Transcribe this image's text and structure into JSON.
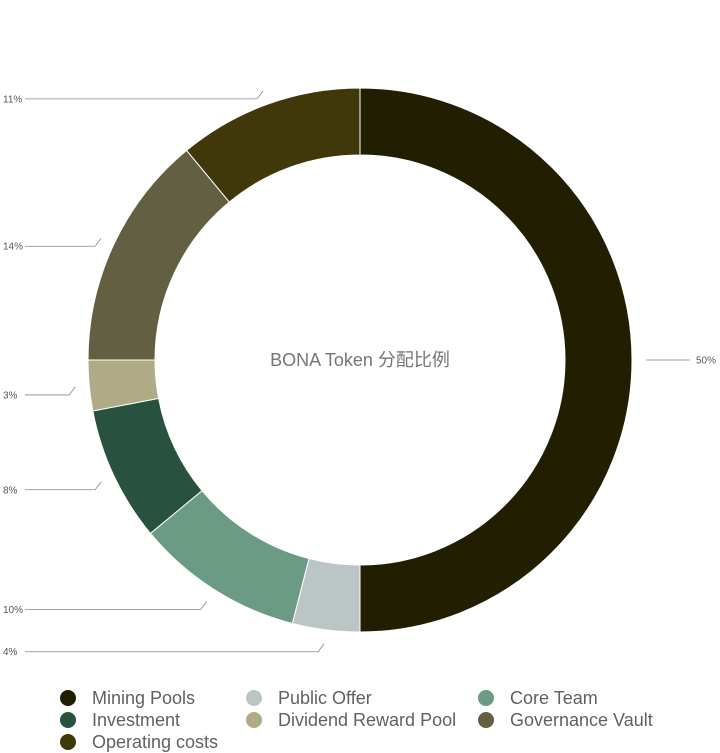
{
  "chart_data": {
    "type": "pie",
    "style": "donut",
    "title": "BONA Token 分配比例",
    "categories": [
      "Mining Pools",
      "Public Offer",
      "Core Team",
      "Investment",
      "Dividend Reward Pool",
      "Governance Vault",
      "Operating costs"
    ],
    "values": [
      50,
      4,
      10,
      8,
      3,
      14,
      11
    ],
    "value_labels": [
      "50%",
      "4%",
      "10%",
      "8%",
      "3%",
      "14%",
      "11%"
    ],
    "colors": [
      "#211e02",
      "#bbc5c5",
      "#6b9b85",
      "#28513f",
      "#b0ab87",
      "#635f42",
      "#403809"
    ],
    "legend_position": "bottom",
    "xlabel": "",
    "ylabel": ""
  }
}
